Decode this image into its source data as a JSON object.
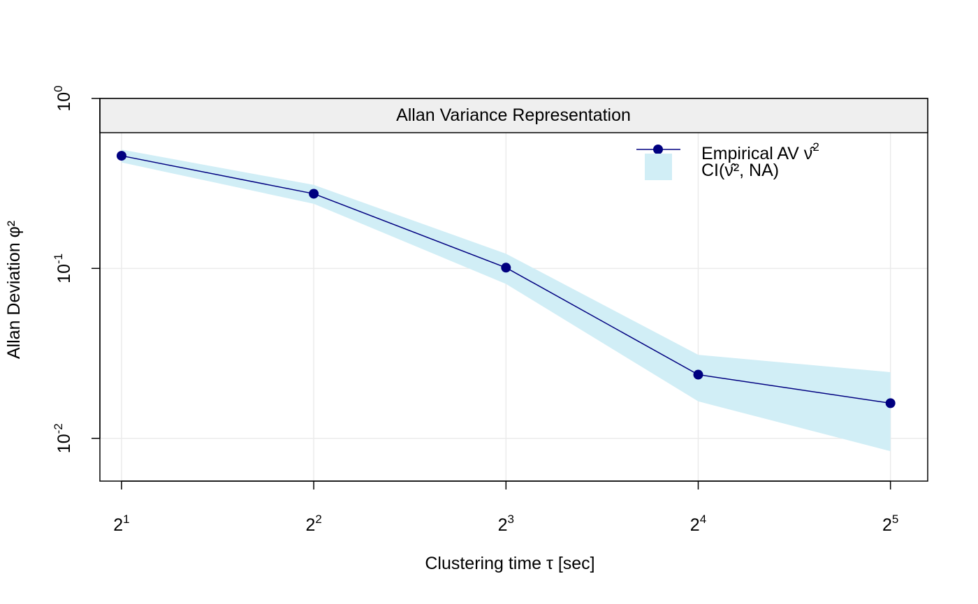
{
  "chart_data": {
    "type": "line",
    "title": "Allan Variance Representation",
    "xlabel": "Clustering time τ [sec]",
    "ylabel": "Allan Deviation φ²",
    "x_scale": "log2",
    "y_scale": "log10",
    "xlim": [
      1.85,
      36.6
    ],
    "ylim": [
      0.0056,
      1.0
    ],
    "x_ticks": [
      {
        "value": 2,
        "base": "2",
        "exp": "1"
      },
      {
        "value": 4,
        "base": "2",
        "exp": "2"
      },
      {
        "value": 8,
        "base": "2",
        "exp": "3"
      },
      {
        "value": 16,
        "base": "2",
        "exp": "4"
      },
      {
        "value": 32,
        "base": "2",
        "exp": "5"
      }
    ],
    "y_ticks": [
      {
        "value": 0.01,
        "base": "10",
        "exp": "-2"
      },
      {
        "value": 0.1,
        "base": "10",
        "exp": "-1"
      },
      {
        "value": 1,
        "base": "10",
        "exp": "0"
      }
    ],
    "grid": true,
    "series": [
      {
        "name": "Empirical AV ν̂²",
        "x": [
          2,
          4,
          8,
          16,
          32
        ],
        "y": [
          0.46,
          0.275,
          0.101,
          0.0237,
          0.0161
        ],
        "color": "#000080"
      }
    ],
    "ci": {
      "name": "CI(ν̂², NA)",
      "x": [
        2,
        4,
        8,
        16,
        32
      ],
      "lower": [
        0.42,
        0.24,
        0.081,
        0.0165,
        0.0084
      ],
      "upper": [
        0.5,
        0.31,
        0.122,
        0.031,
        0.0245
      ],
      "color": "#d1eef6"
    },
    "legend": {
      "position": "top-right",
      "items": [
        {
          "label_main": "Empirical AV ν̂",
          "label_sup": "2"
        },
        {
          "label_main": "CI(ν̂², NA)",
          "label_sup": ""
        }
      ]
    },
    "colors": {
      "line": "#000080",
      "band": "#d1eef6",
      "grid": "#ebebeb",
      "header_bg": "#efefef"
    }
  }
}
